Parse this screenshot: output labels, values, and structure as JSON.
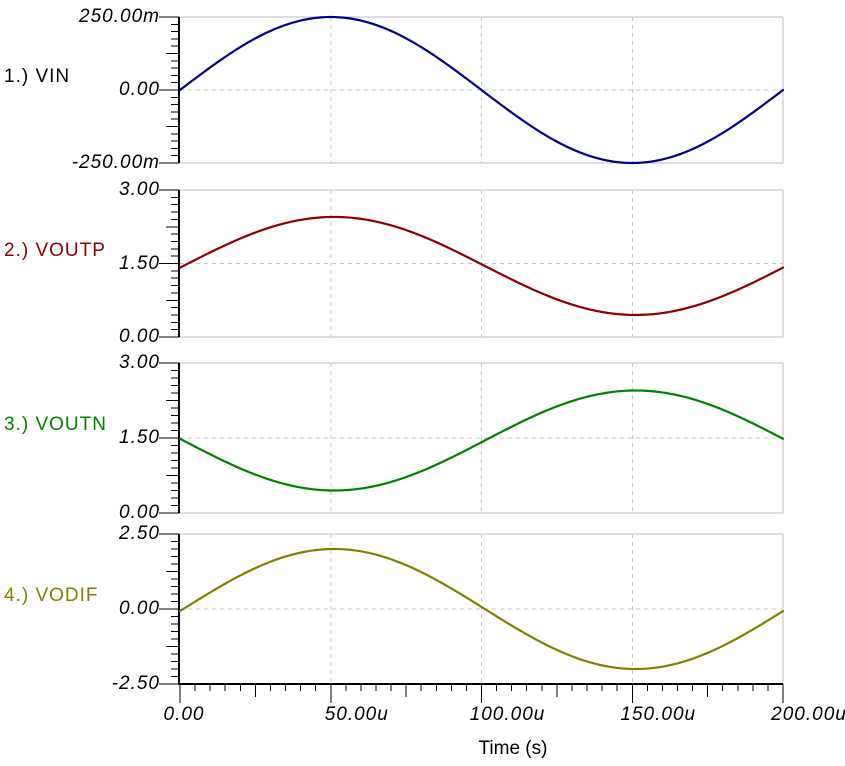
{
  "colors": {
    "background": "#FFFFFF",
    "axis": "#000000",
    "grid_solid": "#BEBEBE",
    "grid_dashed": "#C9C9C9"
  },
  "chart_data": {
    "type": "line",
    "layout": "4 vertically stacked panels sharing one x axis, legend labels at left",
    "xlabel": "Time (s)",
    "x_ticks": [
      "0.00",
      "50.00u",
      "100.00u",
      "150.00u",
      "200.00u"
    ],
    "x_range_seconds": [
      0,
      0.0002
    ],
    "x_minor_divisions_per_major": 10,
    "grid": "dashed verticals at 50u/100u/150u, dashed horizontal at mid level of each panel",
    "panels": [
      {
        "label": "1.) VIN",
        "name": "VIN",
        "color": "#00008B",
        "label_color": "#000000",
        "y_ticks": [
          "250.00m",
          "0.00",
          "-250.00m"
        ],
        "y_range": [
          -0.25,
          0.25
        ],
        "waveform": {
          "shape": "sine",
          "offset_v": 0,
          "amplitude_v": 0.25,
          "cycles_in_window": 1,
          "phase_deg": 0
        }
      },
      {
        "label": "2.) VOUTP",
        "name": "VOUTP",
        "color": "#8B0000",
        "label_color": "#8B0000",
        "y_ticks": [
          "3.00",
          "1.50",
          "0.00"
        ],
        "y_range": [
          0,
          3
        ],
        "waveform": {
          "shape": "sine",
          "offset_v": 1.45,
          "amplitude_v": 1.0,
          "cycles_in_window": 1,
          "phase_deg": -2
        }
      },
      {
        "label": "3.) VOUTN",
        "name": "VOUTN",
        "color": "#008000",
        "label_color": "#008000",
        "y_ticks": [
          "3.00",
          "1.50",
          "0.00"
        ],
        "y_range": [
          0,
          3
        ],
        "waveform": {
          "shape": "sine",
          "offset_v": 1.45,
          "amplitude_v": -1.0,
          "cycles_in_window": 1,
          "phase_deg": -2
        }
      },
      {
        "label": "4.) VODIF",
        "name": "VODIF",
        "color": "#808000",
        "label_color": "#808000",
        "y_ticks": [
          "2.50",
          "0.00",
          "-2.50"
        ],
        "y_range": [
          -2.5,
          2.5
        ],
        "waveform": {
          "shape": "sine",
          "offset_v": 0,
          "amplitude_v": 2.0,
          "cycles_in_window": 1,
          "phase_deg": -2
        }
      }
    ]
  }
}
